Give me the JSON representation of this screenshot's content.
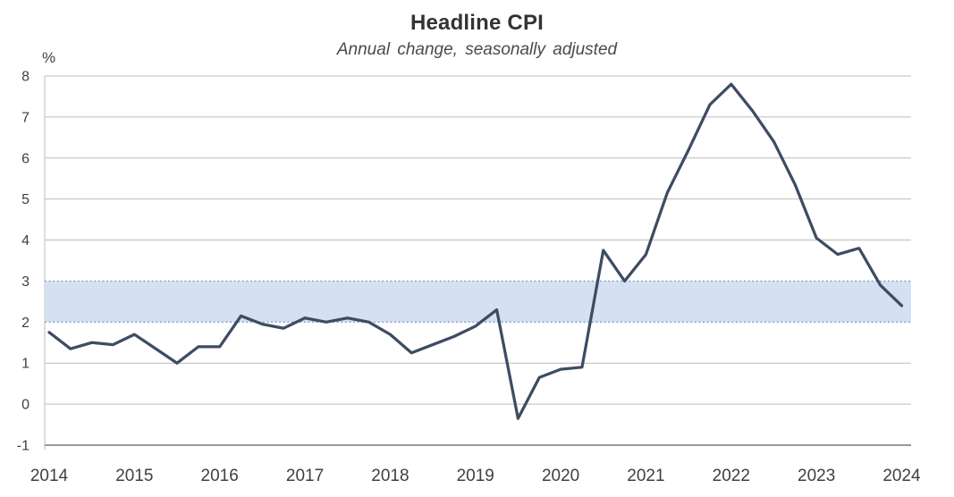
{
  "chart_data": {
    "type": "line",
    "title": "Headline CPI",
    "subtitle": "Annual change, seasonally adjusted",
    "unit_label": "%",
    "series_name": "Headline CPI, annual % change",
    "frequency": "quarterly",
    "x_tick_labels": [
      "2014",
      "2015",
      "2016",
      "2017",
      "2018",
      "2019",
      "2020",
      "2021",
      "2022",
      "2023",
      "2024"
    ],
    "y_tick_labels": [
      "8",
      "7",
      "6",
      "5",
      "4",
      "3",
      "2",
      "1",
      "0",
      "-1"
    ],
    "y_ticks": [
      8,
      7,
      6,
      5,
      4,
      3,
      2,
      1,
      0,
      -1
    ],
    "ylim": [
      -1,
      8
    ],
    "xlim": [
      2014,
      2024.1
    ],
    "grid": "horizontal",
    "legend": "none",
    "target_band": {
      "from": 2,
      "to": 3,
      "style": "shaded band with dotted borders"
    },
    "periods": [
      "2014 Q1",
      "2014 Q2",
      "2014 Q3",
      "2014 Q4",
      "2015 Q1",
      "2015 Q2",
      "2015 Q3",
      "2015 Q4",
      "2016 Q1",
      "2016 Q2",
      "2016 Q3",
      "2016 Q4",
      "2017 Q1",
      "2017 Q2",
      "2017 Q3",
      "2017 Q4",
      "2018 Q1",
      "2018 Q2",
      "2018 Q3",
      "2018 Q4",
      "2019 Q1",
      "2019 Q2",
      "2019 Q3",
      "2019 Q4",
      "2020 Q1",
      "2020 Q2",
      "2020 Q3",
      "2020 Q4",
      "2021 Q1",
      "2021 Q2",
      "2021 Q3",
      "2021 Q4",
      "2022 Q1",
      "2022 Q2",
      "2022 Q3",
      "2022 Q4",
      "2023 Q1",
      "2023 Q2",
      "2023 Q3",
      "2023 Q4",
      "2024 Q1"
    ],
    "values": [
      1.75,
      1.35,
      1.5,
      1.45,
      1.7,
      1.35,
      1.0,
      1.4,
      1.4,
      2.15,
      1.95,
      1.85,
      2.1,
      2.0,
      2.1,
      2.0,
      1.7,
      1.25,
      1.45,
      1.65,
      1.9,
      2.3,
      -0.35,
      0.65,
      0.85,
      0.9,
      3.75,
      3.0,
      3.65,
      5.15,
      6.2,
      7.3,
      7.8,
      7.15,
      6.4,
      5.35,
      4.05,
      3.65,
      3.8,
      2.9,
      2.4
    ],
    "colors": {
      "line": "#3e4c62",
      "band_fill": "#d5e0f0",
      "band_border": "#7f9fd4",
      "gridline": "#bcbcbc",
      "axis": "#9a9a9a",
      "tick_text": "#404040",
      "title_text": "#333333"
    }
  }
}
